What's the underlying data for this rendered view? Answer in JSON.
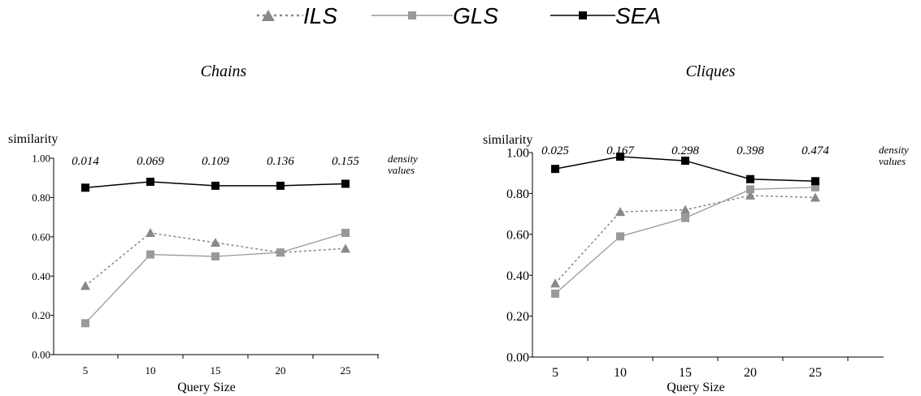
{
  "legend": [
    {
      "name": "ILS",
      "color": "#888888",
      "line": "dotted",
      "marker": "triangle"
    },
    {
      "name": "GLS",
      "color": "#999999",
      "line": "solid",
      "marker": "square"
    },
    {
      "name": "SEA",
      "color": "#000000",
      "line": "solid",
      "marker": "square"
    }
  ],
  "chart_data": [
    {
      "type": "line",
      "title": "Chains",
      "xlabel": "Query Size",
      "ylabel": "similarity",
      "categories": [
        "5",
        "10",
        "15",
        "20",
        "25"
      ],
      "ylim": [
        0,
        1
      ],
      "yticks": [
        "0.00",
        "0.20",
        "0.40",
        "0.60",
        "0.80",
        "1.00"
      ],
      "density_values": [
        "0.014",
        "0.069",
        "0.109",
        "0.136",
        "0.155"
      ],
      "density_caption": [
        "density",
        "values"
      ],
      "grid": false,
      "series": [
        {
          "name": "ILS",
          "values": [
            0.35,
            0.62,
            0.57,
            0.52,
            0.54
          ]
        },
        {
          "name": "GLS",
          "values": [
            0.16,
            0.51,
            0.5,
            0.52,
            0.62
          ]
        },
        {
          "name": "SEA",
          "values": [
            0.85,
            0.88,
            0.86,
            0.86,
            0.87
          ]
        }
      ]
    },
    {
      "type": "line",
      "title": "Cliques",
      "xlabel": "Query Size",
      "ylabel": "similarity",
      "categories": [
        "5",
        "10",
        "15",
        "20",
        "25"
      ],
      "ylim": [
        0,
        1
      ],
      "yticks": [
        "0.00",
        "0.20",
        "0.40",
        "0.60",
        "0.80",
        "1.00"
      ],
      "density_values": [
        "0.025",
        "0.167",
        "0.298",
        "0.398",
        "0.474"
      ],
      "density_caption": [
        "density",
        "values"
      ],
      "grid": false,
      "series": [
        {
          "name": "ILS",
          "values": [
            0.36,
            0.71,
            0.72,
            0.79,
            0.78
          ]
        },
        {
          "name": "GLS",
          "values": [
            0.31,
            0.59,
            0.68,
            0.82,
            0.83
          ]
        },
        {
          "name": "SEA",
          "values": [
            0.92,
            0.98,
            0.96,
            0.87,
            0.86
          ]
        }
      ]
    }
  ]
}
